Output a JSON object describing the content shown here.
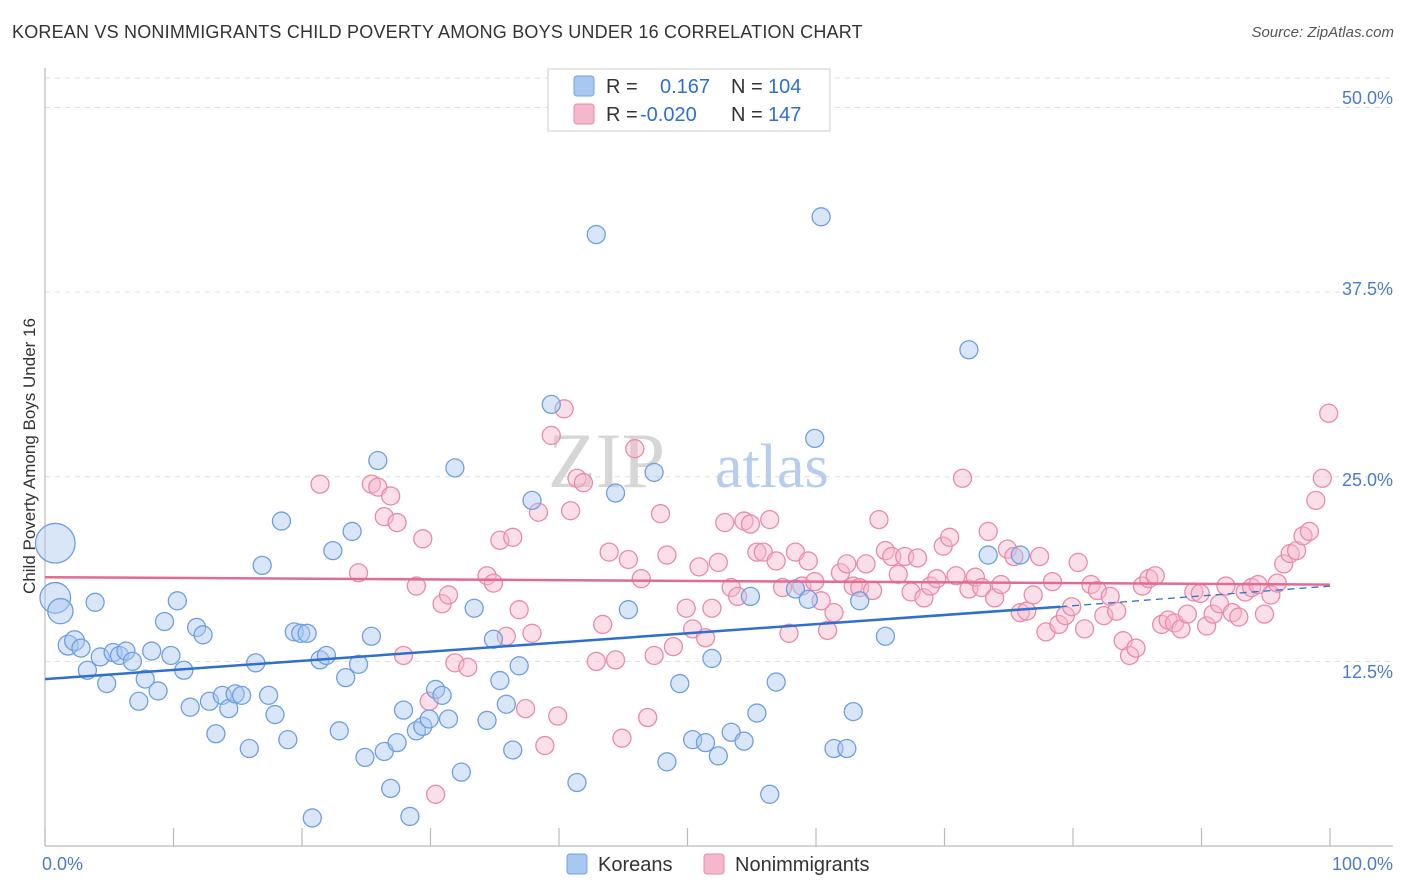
{
  "title": "KOREAN VS NONIMMIGRANTS CHILD POVERTY AMONG BOYS UNDER 16 CORRELATION CHART",
  "source": "Source: ZipAtlas.com",
  "watermark": {
    "zip": "ZIP",
    "atlas": "atlas"
  },
  "colors": {
    "koreans_fill": "#a9c8f0",
    "koreans_stroke": "#6f9fe0",
    "koreans_line": "#2f6fcf",
    "nonimm_fill": "#f5b7cb",
    "nonimm_stroke": "#e98aaa",
    "nonimm_line": "#e06b93",
    "tick_text": "#4a7cc9",
    "grid": "#dddddd"
  },
  "stats": {
    "koreans": {
      "r_label": "R =",
      "r_value": "0.167",
      "n_label": "N =",
      "n_value": "104"
    },
    "nonimmigrants": {
      "r_label": "R =",
      "r_value": "-0.020",
      "n_label": "N =",
      "n_value": "147"
    }
  },
  "chart_data": {
    "type": "scatter",
    "title": "KOREAN VS NONIMMIGRANTS CHILD POVERTY AMONG BOYS UNDER 16 CORRELATION CHART",
    "xlabel": "",
    "ylabel": "Child Poverty Among Boys Under 16",
    "x_tick_labels": [
      "0.0%",
      "100.0%"
    ],
    "y_tick_labels": [
      "12.5%",
      "25.0%",
      "37.5%",
      "50.0%"
    ],
    "y_ticks": [
      12.5,
      25.0,
      37.5,
      50.0
    ],
    "xlim": [
      0,
      100
    ],
    "ylim": [
      0,
      52
    ],
    "grid": true,
    "legend_position": "bottom-center",
    "series": [
      {
        "name": "Koreans",
        "color": "#a9c8f0",
        "trend": {
          "x0": 0,
          "y0": 11.3,
          "x1": 79,
          "y1": 16.2,
          "dashed_to_x": 100,
          "dashed_to_y": 17.6
        },
        "points": [
          {
            "x": 0.8,
            "y": 20.5,
            "s": 2.2
          },
          {
            "x": 0.8,
            "y": 16.8,
            "s": 1.7
          },
          {
            "x": 1.2,
            "y": 15.9,
            "s": 1.4
          },
          {
            "x": 1.8,
            "y": 13.6,
            "s": 1.1
          },
          {
            "x": 2.3,
            "y": 13.9,
            "s": 1.1
          },
          {
            "x": 2.8,
            "y": 13.4,
            "s": 1
          },
          {
            "x": 3.3,
            "y": 11.9,
            "s": 1
          },
          {
            "x": 3.9,
            "y": 16.5,
            "s": 1
          },
          {
            "x": 4.3,
            "y": 12.8,
            "s": 1
          },
          {
            "x": 4.8,
            "y": 11
          },
          {
            "x": 5.3,
            "y": 13.1
          },
          {
            "x": 5.8,
            "y": 12.9
          },
          {
            "x": 6.3,
            "y": 13.2
          },
          {
            "x": 6.8,
            "y": 12.5
          },
          {
            "x": 7.3,
            "y": 9.8
          },
          {
            "x": 7.8,
            "y": 11.3
          },
          {
            "x": 8.3,
            "y": 13.2
          },
          {
            "x": 8.8,
            "y": 10.5
          },
          {
            "x": 9.3,
            "y": 15.2
          },
          {
            "x": 9.8,
            "y": 12.9
          },
          {
            "x": 10.3,
            "y": 16.6
          },
          {
            "x": 10.8,
            "y": 11.9
          },
          {
            "x": 11.3,
            "y": 9.4
          },
          {
            "x": 11.8,
            "y": 14.8
          },
          {
            "x": 12.3,
            "y": 14.3
          },
          {
            "x": 12.8,
            "y": 9.8
          },
          {
            "x": 13.3,
            "y": 7.6
          },
          {
            "x": 13.8,
            "y": 10.2
          },
          {
            "x": 14.3,
            "y": 9.3
          },
          {
            "x": 14.8,
            "y": 10.3
          },
          {
            "x": 15.3,
            "y": 10.2
          },
          {
            "x": 15.9,
            "y": 6.6
          },
          {
            "x": 16.4,
            "y": 12.4
          },
          {
            "x": 16.9,
            "y": 19
          },
          {
            "x": 17.4,
            "y": 10.2
          },
          {
            "x": 17.9,
            "y": 8.9
          },
          {
            "x": 18.4,
            "y": 22
          },
          {
            "x": 18.9,
            "y": 7.2
          },
          {
            "x": 19.4,
            "y": 14.5
          },
          {
            "x": 19.9,
            "y": 14.4
          },
          {
            "x": 20.4,
            "y": 14.4
          },
          {
            "x": 20.8,
            "y": 1.9
          },
          {
            "x": 21.4,
            "y": 12.6
          },
          {
            "x": 21.9,
            "y": 12.9
          },
          {
            "x": 22.4,
            "y": 20
          },
          {
            "x": 22.9,
            "y": 7.8
          },
          {
            "x": 23.4,
            "y": 11.4
          },
          {
            "x": 23.9,
            "y": 21.3
          },
          {
            "x": 24.4,
            "y": 12.3
          },
          {
            "x": 24.9,
            "y": 6
          },
          {
            "x": 25.4,
            "y": 14.2
          },
          {
            "x": 25.9,
            "y": 26.1
          },
          {
            "x": 26.4,
            "y": 6.4
          },
          {
            "x": 26.9,
            "y": 3.9
          },
          {
            "x": 27.4,
            "y": 7
          },
          {
            "x": 27.9,
            "y": 9.2
          },
          {
            "x": 28.4,
            "y": 2
          },
          {
            "x": 28.9,
            "y": 7.8
          },
          {
            "x": 29.4,
            "y": 8.1
          },
          {
            "x": 29.9,
            "y": 8.6
          },
          {
            "x": 30.4,
            "y": 10.6
          },
          {
            "x": 30.9,
            "y": 10.2
          },
          {
            "x": 31.4,
            "y": 8.6
          },
          {
            "x": 31.9,
            "y": 25.6
          },
          {
            "x": 32.4,
            "y": 5
          },
          {
            "x": 33.4,
            "y": 16.1
          },
          {
            "x": 34.4,
            "y": 8.5
          },
          {
            "x": 34.9,
            "y": 14
          },
          {
            "x": 35.4,
            "y": 11.2
          },
          {
            "x": 35.9,
            "y": 9.6
          },
          {
            "x": 36.4,
            "y": 6.5
          },
          {
            "x": 36.9,
            "y": 12.2
          },
          {
            "x": 37.9,
            "y": 23.4
          },
          {
            "x": 39.4,
            "y": 29.9
          },
          {
            "x": 41.4,
            "y": 4.3
          },
          {
            "x": 42.9,
            "y": 41.4
          },
          {
            "x": 44.4,
            "y": 23.9
          },
          {
            "x": 45.4,
            "y": 16
          },
          {
            "x": 47.4,
            "y": 25.3
          },
          {
            "x": 48.4,
            "y": 5.7
          },
          {
            "x": 49.4,
            "y": 11
          },
          {
            "x": 50.4,
            "y": 7.2
          },
          {
            "x": 51.4,
            "y": 7
          },
          {
            "x": 51.9,
            "y": 12.7
          },
          {
            "x": 52.4,
            "y": 6.1
          },
          {
            "x": 53.4,
            "y": 7.7
          },
          {
            "x": 54.4,
            "y": 7.1
          },
          {
            "x": 54.9,
            "y": 16.9
          },
          {
            "x": 55.4,
            "y": 9
          },
          {
            "x": 56.4,
            "y": 3.5
          },
          {
            "x": 56.9,
            "y": 11.1
          },
          {
            "x": 58.4,
            "y": 17.4
          },
          {
            "x": 59.4,
            "y": 16.7
          },
          {
            "x": 59.9,
            "y": 27.6
          },
          {
            "x": 60.4,
            "y": 42.6
          },
          {
            "x": 61.4,
            "y": 6.6
          },
          {
            "x": 62.4,
            "y": 6.6
          },
          {
            "x": 62.9,
            "y": 9.1
          },
          {
            "x": 63.4,
            "y": 16.6
          },
          {
            "x": 65.4,
            "y": 14.2
          },
          {
            "x": 71.9,
            "y": 33.6
          },
          {
            "x": 73.4,
            "y": 19.7
          },
          {
            "x": 75.9,
            "y": 19.7
          }
        ]
      },
      {
        "name": "Nonimmigrants",
        "color": "#f5b7cb",
        "trend": {
          "x0": 0,
          "y0": 18.2,
          "x1": 100,
          "y1": 17.7
        },
        "points": [
          {
            "x": 21.4,
            "y": 24.5
          },
          {
            "x": 24.4,
            "y": 18.5
          },
          {
            "x": 25.4,
            "y": 24.5
          },
          {
            "x": 25.9,
            "y": 24.3
          },
          {
            "x": 26.4,
            "y": 22.3
          },
          {
            "x": 26.9,
            "y": 23.7
          },
          {
            "x": 27.4,
            "y": 21.9
          },
          {
            "x": 27.9,
            "y": 12.9
          },
          {
            "x": 28.9,
            "y": 17.6
          },
          {
            "x": 29.4,
            "y": 20.8
          },
          {
            "x": 29.9,
            "y": 9.8
          },
          {
            "x": 30.4,
            "y": 3.5
          },
          {
            "x": 30.9,
            "y": 16.4
          },
          {
            "x": 31.4,
            "y": 17
          },
          {
            "x": 31.9,
            "y": 12.4
          },
          {
            "x": 32.9,
            "y": 12.1
          },
          {
            "x": 34.4,
            "y": 18.3
          },
          {
            "x": 34.9,
            "y": 17.8
          },
          {
            "x": 35.4,
            "y": 20.7
          },
          {
            "x": 35.9,
            "y": 14.2
          },
          {
            "x": 36.4,
            "y": 20.9
          },
          {
            "x": 36.9,
            "y": 16
          },
          {
            "x": 37.4,
            "y": 9.3
          },
          {
            "x": 37.9,
            "y": 14.4
          },
          {
            "x": 38.4,
            "y": 22.6
          },
          {
            "x": 38.9,
            "y": 6.8
          },
          {
            "x": 39.4,
            "y": 27.8
          },
          {
            "x": 39.9,
            "y": 8.8
          },
          {
            "x": 40.4,
            "y": 29.6
          },
          {
            "x": 40.9,
            "y": 22.7
          },
          {
            "x": 41.4,
            "y": 24.9
          },
          {
            "x": 41.9,
            "y": 24.6
          },
          {
            "x": 42.9,
            "y": 12.5
          },
          {
            "x": 43.4,
            "y": 15
          },
          {
            "x": 43.9,
            "y": 19.9
          },
          {
            "x": 44.4,
            "y": 12.6
          },
          {
            "x": 44.9,
            "y": 7.3
          },
          {
            "x": 45.4,
            "y": 19.4
          },
          {
            "x": 45.9,
            "y": 26.9
          },
          {
            "x": 46.4,
            "y": 18.1
          },
          {
            "x": 46.9,
            "y": 8.7
          },
          {
            "x": 47.4,
            "y": 12.9
          },
          {
            "x": 47.9,
            "y": 22.5
          },
          {
            "x": 48.4,
            "y": 19.7
          },
          {
            "x": 48.9,
            "y": 13.5
          },
          {
            "x": 49.9,
            "y": 16.1
          },
          {
            "x": 50.4,
            "y": 14.7
          },
          {
            "x": 50.9,
            "y": 18.9
          },
          {
            "x": 51.4,
            "y": 14.1
          },
          {
            "x": 51.9,
            "y": 16.1
          },
          {
            "x": 52.4,
            "y": 19.2
          },
          {
            "x": 52.9,
            "y": 21.9
          },
          {
            "x": 53.4,
            "y": 17.5
          },
          {
            "x": 53.9,
            "y": 16.9
          },
          {
            "x": 54.4,
            "y": 22
          },
          {
            "x": 54.9,
            "y": 21.8
          },
          {
            "x": 55.4,
            "y": 19.9
          },
          {
            "x": 55.9,
            "y": 19.9
          },
          {
            "x": 56.4,
            "y": 22.1
          },
          {
            "x": 56.9,
            "y": 19.3
          },
          {
            "x": 57.4,
            "y": 17.5
          },
          {
            "x": 57.9,
            "y": 14.4
          },
          {
            "x": 58.4,
            "y": 19.9
          },
          {
            "x": 58.9,
            "y": 17.6
          },
          {
            "x": 59.4,
            "y": 19.3
          },
          {
            "x": 59.9,
            "y": 17.9
          },
          {
            "x": 60.4,
            "y": 16.6
          },
          {
            "x": 60.9,
            "y": 14.6
          },
          {
            "x": 61.4,
            "y": 15.8
          },
          {
            "x": 61.9,
            "y": 18.5
          },
          {
            "x": 62.4,
            "y": 19.1
          },
          {
            "x": 62.9,
            "y": 17.6
          },
          {
            "x": 63.4,
            "y": 17.5
          },
          {
            "x": 63.9,
            "y": 19.1
          },
          {
            "x": 64.4,
            "y": 17.3
          },
          {
            "x": 64.9,
            "y": 22.1
          },
          {
            "x": 65.4,
            "y": 20
          },
          {
            "x": 65.9,
            "y": 19.6
          },
          {
            "x": 66.4,
            "y": 18.4
          },
          {
            "x": 66.9,
            "y": 19.6
          },
          {
            "x": 67.4,
            "y": 17.2
          },
          {
            "x": 67.9,
            "y": 19.5
          },
          {
            "x": 68.4,
            "y": 16.8
          },
          {
            "x": 68.9,
            "y": 17.6
          },
          {
            "x": 69.4,
            "y": 18.1
          },
          {
            "x": 69.9,
            "y": 20.3
          },
          {
            "x": 70.4,
            "y": 20.9
          },
          {
            "x": 70.9,
            "y": 18.3
          },
          {
            "x": 71.4,
            "y": 24.9
          },
          {
            "x": 71.9,
            "y": 17.4
          },
          {
            "x": 72.4,
            "y": 18.2
          },
          {
            "x": 72.9,
            "y": 17.5
          },
          {
            "x": 73.4,
            "y": 21.3
          },
          {
            "x": 73.9,
            "y": 16.8
          },
          {
            "x": 74.4,
            "y": 17.7
          },
          {
            "x": 74.9,
            "y": 20.1
          },
          {
            "x": 75.4,
            "y": 19.6
          },
          {
            "x": 75.9,
            "y": 15.8
          },
          {
            "x": 76.4,
            "y": 15.9
          },
          {
            "x": 76.9,
            "y": 17
          },
          {
            "x": 77.4,
            "y": 19.6
          },
          {
            "x": 77.9,
            "y": 14.5
          },
          {
            "x": 78.4,
            "y": 17.9
          },
          {
            "x": 78.9,
            "y": 15
          },
          {
            "x": 79.4,
            "y": 15.6
          },
          {
            "x": 79.9,
            "y": 16.2
          },
          {
            "x": 80.4,
            "y": 19.2
          },
          {
            "x": 80.9,
            "y": 14.7
          },
          {
            "x": 81.4,
            "y": 17.7
          },
          {
            "x": 81.9,
            "y": 17.3
          },
          {
            "x": 82.4,
            "y": 15.6
          },
          {
            "x": 82.9,
            "y": 16.9
          },
          {
            "x": 83.4,
            "y": 15.9
          },
          {
            "x": 83.9,
            "y": 13.9
          },
          {
            "x": 84.4,
            "y": 12.9
          },
          {
            "x": 84.9,
            "y": 13.4
          },
          {
            "x": 85.4,
            "y": 17.6
          },
          {
            "x": 85.9,
            "y": 18.1
          },
          {
            "x": 86.4,
            "y": 18.3
          },
          {
            "x": 86.9,
            "y": 15
          },
          {
            "x": 87.4,
            "y": 15.3
          },
          {
            "x": 87.9,
            "y": 15.1
          },
          {
            "x": 88.4,
            "y": 14.7
          },
          {
            "x": 88.9,
            "y": 15.7
          },
          {
            "x": 89.4,
            "y": 17.2
          },
          {
            "x": 89.9,
            "y": 17.1
          },
          {
            "x": 90.4,
            "y": 14.9
          },
          {
            "x": 90.9,
            "y": 15.7
          },
          {
            "x": 91.4,
            "y": 16.4
          },
          {
            "x": 91.9,
            "y": 17.6
          },
          {
            "x": 92.4,
            "y": 15.8
          },
          {
            "x": 92.9,
            "y": 15.5
          },
          {
            "x": 93.4,
            "y": 17.2
          },
          {
            "x": 93.9,
            "y": 17.5
          },
          {
            "x": 94.4,
            "y": 17.7
          },
          {
            "x": 94.9,
            "y": 15.7
          },
          {
            "x": 95.4,
            "y": 17
          },
          {
            "x": 95.9,
            "y": 17.8
          },
          {
            "x": 96.4,
            "y": 19.1
          },
          {
            "x": 96.9,
            "y": 19.8
          },
          {
            "x": 97.4,
            "y": 20
          },
          {
            "x": 97.9,
            "y": 21
          },
          {
            "x": 98.4,
            "y": 21.3
          },
          {
            "x": 98.9,
            "y": 23.4
          },
          {
            "x": 99.4,
            "y": 24.9
          },
          {
            "x": 99.9,
            "y": 29.3
          }
        ]
      }
    ]
  }
}
